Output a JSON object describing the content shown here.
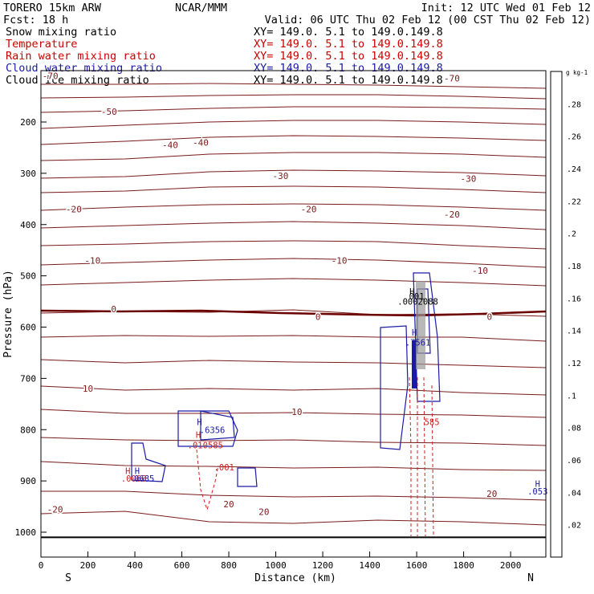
{
  "header": {
    "model": "TORERO  15km ARW",
    "center": "NCAR/MMM",
    "init": "Init: 12 UTC Wed 01 Feb 12",
    "fcst": "Fcst:   18 h",
    "valid": "Valid: 06 UTC Thu 02 Feb 12 (00 CST Thu 02 Feb 12)"
  },
  "fields": [
    {
      "name": "Snow mixing ratio",
      "xy": "XY= 149.0.  5.1 to 149.0.149.8",
      "color": "#000000"
    },
    {
      "name": "Temperature",
      "xy": "XY= 149.0.  5.1 to 149.0.149.8",
      "color": "#cc0000"
    },
    {
      "name": "Rain water mixing ratio",
      "xy": "XY= 149.0.  5.1 to 149.0.149.8",
      "color": "#cc0000"
    },
    {
      "name": "Cloud water mixing ratio",
      "xy": "XY= 149.0.  5.1 to 149.0.149.8",
      "color": "#1a1aa6"
    },
    {
      "name": "Cloud ice mixing ratio",
      "xy": "XY= 149.0.  5.1 to 149.0.149.8",
      "color": "#000000"
    }
  ],
  "colors": {
    "temperature": "#7a1a1a",
    "freezing": "#6b0000",
    "cloud_water": "#1a1aa6",
    "rain": "#cc2222",
    "ground": "#000000"
  },
  "chart_data": {
    "type": "cross-section",
    "xlabel": "Distance (km)",
    "ylabel": "Pressure (hPa)",
    "xlim": [
      0,
      2150
    ],
    "ylim": [
      1050,
      100
    ],
    "x_ticks": [
      0,
      200,
      400,
      600,
      800,
      1000,
      1200,
      1400,
      1600,
      1800,
      2000
    ],
    "y_ticks": [
      200,
      300,
      400,
      500,
      600,
      700,
      800,
      900,
      1000
    ],
    "end_labels": {
      "left": "S",
      "right": "N"
    },
    "ground_pressure": 1010,
    "colorbar": {
      "unit": "g kg-1",
      "ticks": [
        ".02",
        ".04",
        ".06",
        ".08",
        ".1",
        ".12",
        ".14",
        ".16",
        ".18",
        ".2",
        ".22",
        ".24",
        ".26",
        ".28"
      ]
    },
    "temperature_labels": [
      {
        "text": "-70",
        "x": 40,
        "p": 110
      },
      {
        "text": "-70",
        "x": 1750,
        "p": 115
      },
      {
        "text": "-50",
        "x": 290,
        "p": 180
      },
      {
        "text": "-40",
        "x": 550,
        "p": 245
      },
      {
        "text": "-40",
        "x": 680,
        "p": 240
      },
      {
        "text": "-30",
        "x": 1020,
        "p": 305
      },
      {
        "text": "-30",
        "x": 1820,
        "p": 310
      },
      {
        "text": "-20",
        "x": 140,
        "p": 370
      },
      {
        "text": "-20",
        "x": 1140,
        "p": 370
      },
      {
        "text": "-20",
        "x": 1750,
        "p": 380
      },
      {
        "text": "-10",
        "x": 220,
        "p": 470
      },
      {
        "text": "-10",
        "x": 1270,
        "p": 470
      },
      {
        "text": "-10",
        "x": 1870,
        "p": 490
      },
      {
        "text": "0",
        "x": 310,
        "p": 565
      },
      {
        "text": "0",
        "x": 1180,
        "p": 580
      },
      {
        "text": "0",
        "x": 1910,
        "p": 580
      },
      {
        "text": "10",
        "x": 200,
        "p": 720
      },
      {
        "text": "10",
        "x": 1090,
        "p": 765
      },
      {
        "text": "20",
        "x": 800,
        "p": 945
      },
      {
        "text": "20",
        "x": 950,
        "p": 960
      },
      {
        "text": "20",
        "x": 1920,
        "p": 925
      },
      {
        "text": "-20",
        "x": 60,
        "p": 955
      }
    ],
    "max_labels": [
      {
        "text": "H",
        "x": 1580,
        "p": 530,
        "color": "#000000"
      },
      {
        "text": "001",
        "x": 1600,
        "p": 540,
        "color": "#000000"
      },
      {
        "text": ".0002088",
        "x": 1605,
        "p": 550,
        "color": "#000000"
      },
      {
        "text": "H",
        "x": 1590,
        "p": 610,
        "color": "#1a1aa6"
      },
      {
        "text": ".7561",
        "x": 1605,
        "p": 630,
        "color": "#1a1aa6"
      },
      {
        "text": "H",
        "x": 675,
        "p": 785,
        "color": "#1a1aa6"
      },
      {
        "text": ".6356",
        "x": 730,
        "p": 800,
        "color": "#1a1aa6"
      },
      {
        "text": "H",
        "x": 670,
        "p": 810,
        "color": "#cc2222"
      },
      {
        "text": ".010585",
        "x": 700,
        "p": 830,
        "color": "#cc2222"
      },
      {
        "text": ".001",
        "x": 780,
        "p": 873,
        "color": "#cc2222"
      },
      {
        "text": "H",
        "x": 370,
        "p": 880,
        "color": "#cc2222"
      },
      {
        "text": "H",
        "x": 410,
        "p": 880,
        "color": "#1a1aa6"
      },
      {
        "text": ".0066",
        "x": 395,
        "p": 895,
        "color": "#cc2222"
      },
      {
        "text": "0685",
        "x": 440,
        "p": 895,
        "color": "#1a1aa6"
      },
      {
        "text": "585",
        "x": 1665,
        "p": 785,
        "color": "#cc2222"
      },
      {
        "text": "H",
        "x": 2115,
        "p": 905,
        "color": "#1a1aa6"
      },
      {
        "text": ".053",
        "x": 2115,
        "p": 920,
        "color": "#1a1aa6"
      }
    ]
  }
}
